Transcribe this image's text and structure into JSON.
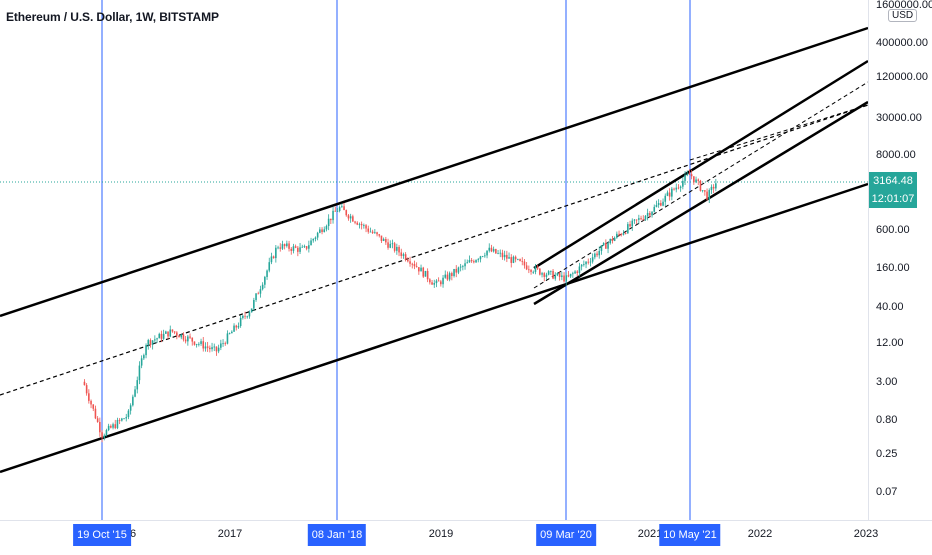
{
  "chart_data": {
    "type": "candlestick",
    "title": "Ethereum / U.S. Dollar, 1W, BITSTAMP",
    "currency": "USD",
    "scale": "log",
    "y_ticks": [
      "1600000.00",
      "400000.00",
      "120000.00",
      "30000.00",
      "8000.00",
      "600.00",
      "160.00",
      "40.00",
      "12.00",
      "3.00",
      "0.80",
      "0.25",
      "0.07"
    ],
    "x_ticks": [
      "6",
      "2017",
      "2019",
      "2021",
      "2022",
      "2023"
    ],
    "date_markers": [
      "19 Oct '15",
      "08 Jan '18",
      "09 Mar '20",
      "10 May '21"
    ],
    "last_price": "3164.48",
    "countdown": "12:01:07",
    "approx_price_path": [
      {
        "date": "2015-08",
        "price": 2.8
      },
      {
        "date": "2015-10",
        "price": 0.5
      },
      {
        "date": "2016-01",
        "price": 1.0
      },
      {
        "date": "2016-03",
        "price": 12
      },
      {
        "date": "2016-06",
        "price": 18
      },
      {
        "date": "2016-11",
        "price": 9
      },
      {
        "date": "2017-03",
        "price": 40
      },
      {
        "date": "2017-06",
        "price": 350
      },
      {
        "date": "2017-09",
        "price": 300
      },
      {
        "date": "2018-01",
        "price": 1300
      },
      {
        "date": "2018-04",
        "price": 650
      },
      {
        "date": "2018-09",
        "price": 220
      },
      {
        "date": "2018-12",
        "price": 90
      },
      {
        "date": "2019-06",
        "price": 300
      },
      {
        "date": "2019-12",
        "price": 140
      },
      {
        "date": "2020-03",
        "price": 110
      },
      {
        "date": "2020-08",
        "price": 420
      },
      {
        "date": "2021-01",
        "price": 1300
      },
      {
        "date": "2021-05",
        "price": 4200
      },
      {
        "date": "2021-07",
        "price": 1900
      },
      {
        "date": "2021-08",
        "price": 3164.48
      }
    ],
    "colors": {
      "up": "#26a69a",
      "down": "#ef5350",
      "marker": "#2962ff",
      "trend": "#000000",
      "price_line": "#26a69a"
    },
    "grid": false
  }
}
